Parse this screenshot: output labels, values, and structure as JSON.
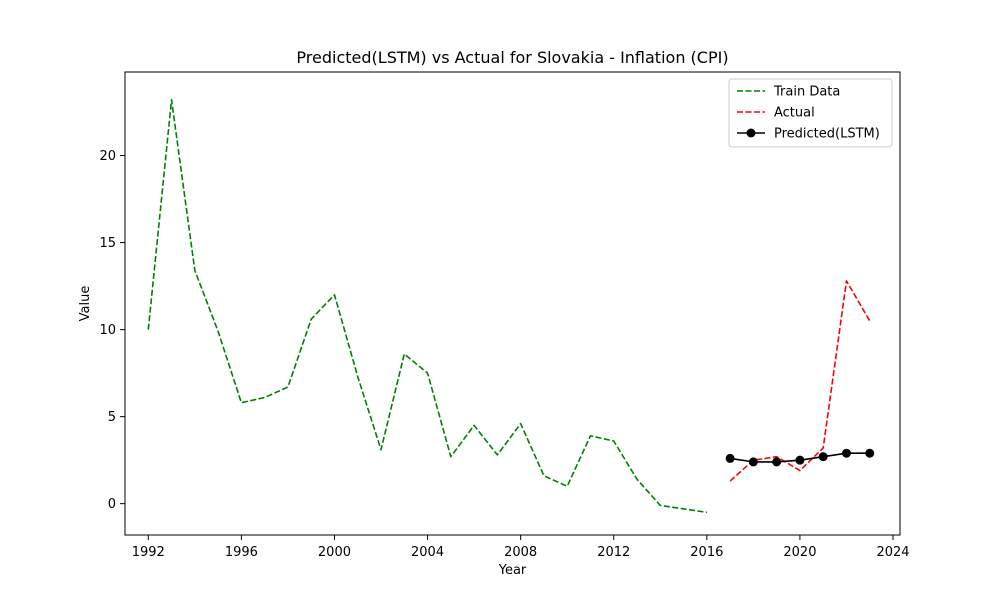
{
  "chart_data": {
    "type": "line",
    "title": "Predicted(LSTM) vs Actual for Slovakia - Inflation (CPI)",
    "xlabel": "Year",
    "ylabel": "Value",
    "xlim": [
      1991.0,
      2024.3
    ],
    "ylim": [
      -1.8,
      24.8
    ],
    "x_ticks": [
      1992,
      1996,
      2000,
      2004,
      2008,
      2012,
      2016,
      2020,
      2024
    ],
    "y_ticks": [
      0,
      5,
      10,
      15,
      20
    ],
    "grid": false,
    "legend_position": "top-right",
    "series": [
      {
        "name": "Train Data",
        "color": "#008000",
        "style": "dashed",
        "x": [
          1992,
          1993,
          1994,
          1995,
          1996,
          1997,
          1998,
          1999,
          2000,
          2001,
          2002,
          2003,
          2004,
          2005,
          2006,
          2007,
          2008,
          2009,
          2010,
          2011,
          2012,
          2013,
          2014,
          2015,
          2016
        ],
        "y": [
          10.0,
          23.2,
          13.4,
          9.9,
          5.8,
          6.1,
          6.7,
          10.6,
          12.0,
          7.3,
          3.1,
          8.6,
          7.5,
          2.7,
          4.5,
          2.8,
          4.6,
          1.6,
          1.0,
          3.9,
          3.6,
          1.4,
          -0.1,
          -0.3,
          -0.5
        ]
      },
      {
        "name": "Actual",
        "color": "#ff0000",
        "style": "dashed",
        "x": [
          2017,
          2018,
          2019,
          2020,
          2021,
          2022,
          2023
        ],
        "y": [
          1.3,
          2.5,
          2.7,
          1.9,
          3.2,
          12.8,
          10.5
        ]
      },
      {
        "name": "Predicted(LSTM)",
        "color": "#000000",
        "style": "solid-markers",
        "x": [
          2017,
          2018,
          2019,
          2020,
          2021,
          2022,
          2023
        ],
        "y": [
          2.6,
          2.4,
          2.4,
          2.5,
          2.7,
          2.9,
          2.9
        ]
      }
    ]
  }
}
